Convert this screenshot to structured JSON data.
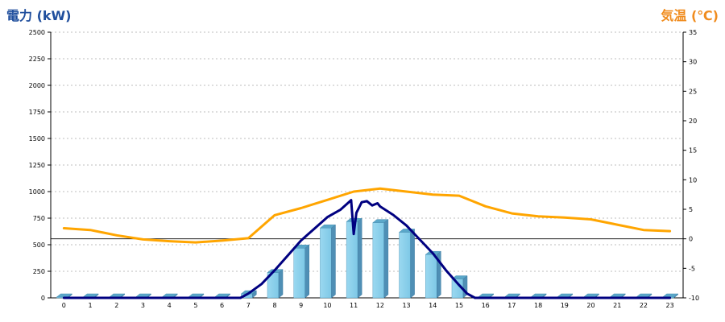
{
  "chart_data": {
    "type": "bar",
    "ylabel_left": "電力 (kW)",
    "ylabel_right": "気温 (℃)",
    "categories": [
      "0",
      "1",
      "2",
      "3",
      "4",
      "5",
      "6",
      "7",
      "8",
      "9",
      "10",
      "11",
      "12",
      "13",
      "14",
      "15",
      "16",
      "17",
      "18",
      "19",
      "20",
      "21",
      "22",
      "23"
    ],
    "ylim_left": [
      0,
      2500
    ],
    "yticks_left": [
      "0",
      "250",
      "500",
      "750",
      "1000",
      "1250",
      "1500",
      "1750",
      "2000",
      "2250",
      "2500"
    ],
    "ylim_right": [
      -10,
      35
    ],
    "yticks_right": [
      "-10",
      "-5",
      "0",
      "5",
      "10",
      "15",
      "20",
      "25",
      "30",
      "35"
    ],
    "grid": true,
    "series": [
      {
        "kind": "bar",
        "values": [
          0,
          0,
          0,
          0,
          0,
          0,
          0,
          30,
          230,
          460,
          650,
          710,
          700,
          610,
          400,
          170,
          0,
          0,
          0,
          0,
          0,
          0,
          0,
          0
        ],
        "color": "#87ceeb"
      },
      {
        "kind": "line",
        "axis": "left",
        "color": "#000080",
        "x": [
          0,
          1,
          2,
          3,
          4,
          5,
          6,
          6.7,
          7,
          7.5,
          8,
          8.5,
          9,
          9.5,
          10,
          10.5,
          10.9,
          11,
          11.1,
          11.3,
          11.5,
          11.7,
          11.9,
          12,
          12.5,
          13,
          13.5,
          14,
          14.5,
          15,
          15.3,
          15.6,
          16,
          17,
          18,
          19,
          20,
          21,
          22,
          23
        ],
        "values": [
          0,
          0,
          0,
          0,
          0,
          0,
          0,
          0,
          40,
          130,
          260,
          400,
          540,
          650,
          760,
          830,
          920,
          600,
          800,
          900,
          910,
          870,
          890,
          860,
          780,
          680,
          550,
          420,
          260,
          120,
          40,
          0,
          0,
          0,
          0,
          0,
          0,
          0,
          0,
          0
        ]
      },
      {
        "kind": "line",
        "axis": "right",
        "color": "#ffa500",
        "x": [
          0,
          1,
          2,
          3,
          4,
          5,
          6,
          7,
          8,
          9,
          10,
          11,
          12,
          13,
          14,
          15,
          16,
          17,
          18,
          19,
          20,
          21,
          22,
          23
        ],
        "values": [
          1.8,
          1.5,
          0.6,
          -0.1,
          -0.4,
          -0.6,
          -0.3,
          0.1,
          4.0,
          5.2,
          6.6,
          8.0,
          8.5,
          8.0,
          7.5,
          7.3,
          5.5,
          4.3,
          3.8,
          3.6,
          3.3,
          2.4,
          1.5,
          1.3
        ]
      }
    ]
  }
}
